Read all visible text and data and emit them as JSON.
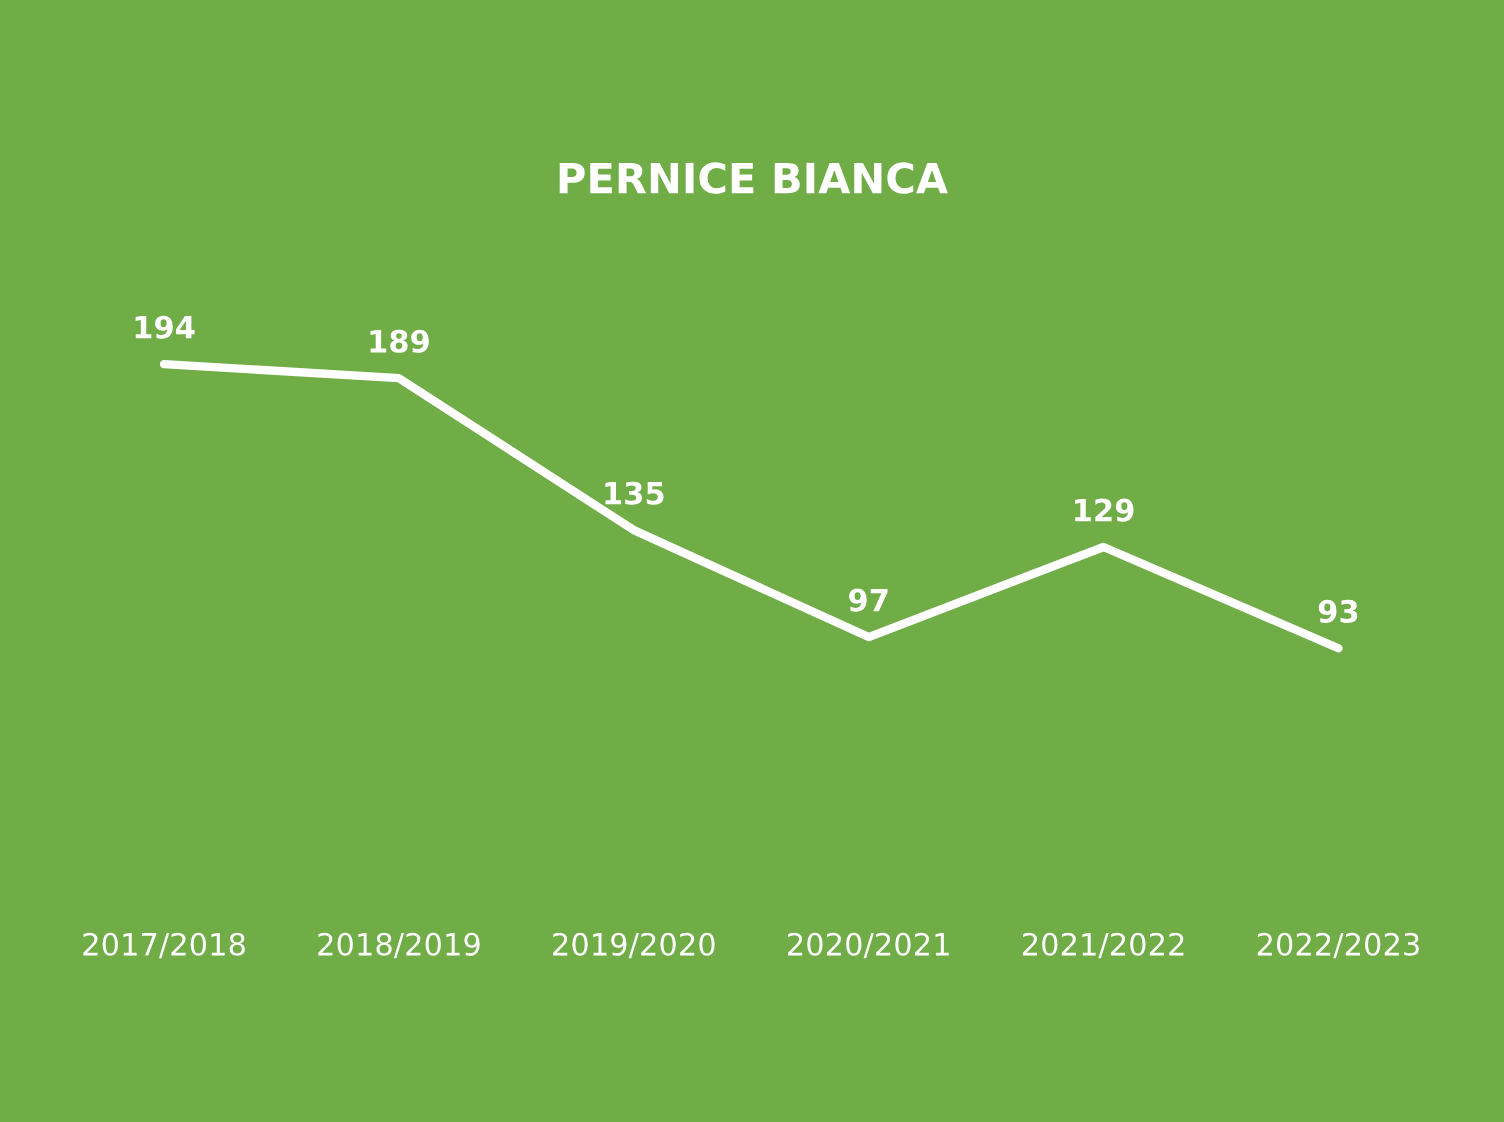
{
  "chart_data": {
    "type": "line",
    "title": "PERNICE BIANCA",
    "categories": [
      "2017/2018",
      "2018/2019",
      "2019/2020",
      "2020/2021",
      "2021/2022",
      "2022/2023"
    ],
    "series": [
      {
        "color": "#ffffff",
        "values": [
          194,
          189,
          135,
          97,
          129,
          93
        ]
      }
    ],
    "data_labels": true,
    "line_style": "solid",
    "tick_labels": "x"
  }
}
